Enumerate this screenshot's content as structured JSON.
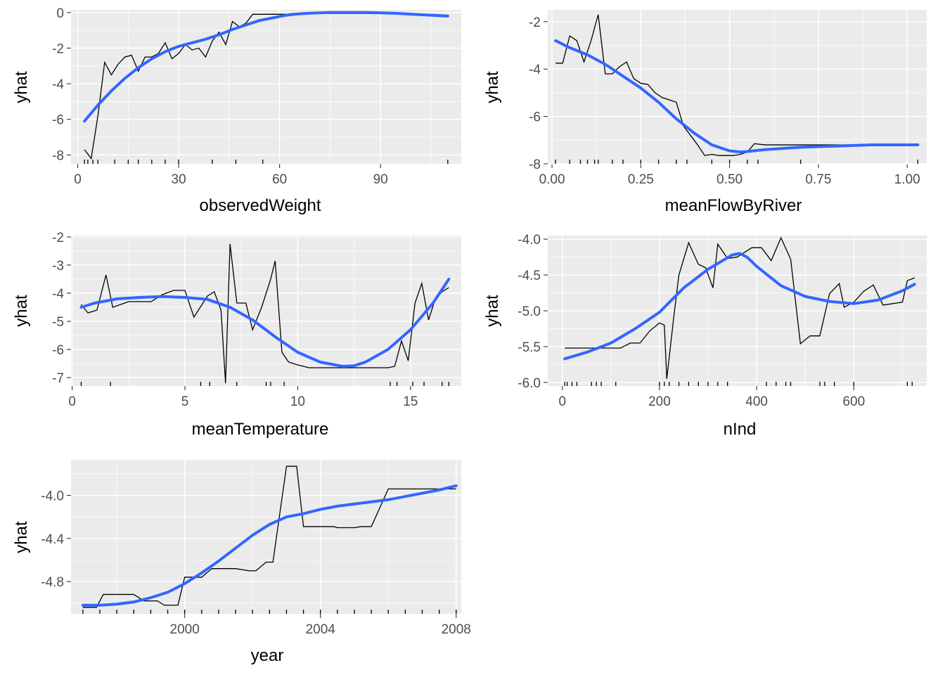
{
  "chart_data": [
    {
      "type": "line",
      "xlabel": "observedWeight",
      "ylabel": "yhat",
      "xlim": [
        -2,
        114
      ],
      "ylim": [
        -8.5,
        0.15
      ],
      "xticks": [
        0,
        30,
        60,
        90
      ],
      "xtick_labels": [
        "0",
        "30",
        "60",
        "90"
      ],
      "yticks": [
        -8,
        -6,
        -4,
        -2,
        0
      ],
      "ytick_labels": [
        "-8",
        "-6",
        "-4",
        "-2",
        "0"
      ],
      "grid": true,
      "rug": [
        2,
        3,
        4.5,
        6,
        11,
        15,
        18,
        22,
        26,
        30,
        40,
        47,
        55,
        110
      ],
      "series": [
        {
          "x": [
            2,
            4,
            6,
            8,
            10,
            12,
            14,
            16,
            18,
            20,
            22,
            24,
            26,
            28,
            30,
            32,
            34,
            36,
            38,
            40,
            42,
            44,
            46,
            48,
            50,
            52,
            54,
            56,
            58,
            60,
            62,
            64,
            66,
            68,
            70,
            75,
            80,
            85,
            90,
            95,
            100,
            105,
            110
          ],
          "values": [
            -7.7,
            -8.2,
            -5.8,
            -2.8,
            -3.5,
            -2.9,
            -2.5,
            -2.4,
            -3.3,
            -2.5,
            -2.5,
            -2.3,
            -1.7,
            -2.6,
            -2.3,
            -1.8,
            -2.1,
            -2.0,
            -2.5,
            -1.6,
            -1.1,
            -1.8,
            -0.5,
            -0.8,
            -0.6,
            -0.1,
            -0.1,
            -0.1,
            -0.1,
            -0.1,
            -0.1,
            -0.05,
            -0.05,
            -0.05,
            -0.05,
            -0.05,
            -0.05,
            -0.05,
            -0.05,
            -0.05,
            -0.1,
            -0.1,
            -0.15
          ]
        },
        {
          "x": [
            2,
            6,
            10,
            14,
            18,
            22,
            26,
            30,
            34,
            38,
            42,
            46,
            50,
            54,
            58,
            62,
            66,
            70,
            75,
            80,
            85,
            90,
            95,
            100,
            105,
            110
          ],
          "values": [
            -6.1,
            -5.2,
            -4.4,
            -3.7,
            -3.1,
            -2.6,
            -2.2,
            -1.9,
            -1.7,
            -1.5,
            -1.25,
            -0.95,
            -0.7,
            -0.45,
            -0.3,
            -0.15,
            -0.07,
            -0.03,
            0.0,
            0.0,
            0.0,
            -0.02,
            -0.05,
            -0.1,
            -0.15,
            -0.2
          ]
        }
      ]
    },
    {
      "type": "line",
      "xlabel": "meanFlowByRiver",
      "ylabel": "yhat",
      "xlim": [
        -0.012,
        1.055
      ],
      "ylim": [
        -8.0,
        -1.5
      ],
      "xticks": [
        0.0,
        0.25,
        0.5,
        0.75,
        1.0
      ],
      "xtick_labels": [
        "0.00",
        "0.25",
        "0.50",
        "0.75",
        "1.00"
      ],
      "yticks": [
        -8,
        -6,
        -4,
        -2
      ],
      "ytick_labels": [
        "-8",
        "-6",
        "-4",
        "-2"
      ],
      "grid": true,
      "rug": [
        0.01,
        0.05,
        0.08,
        0.1,
        0.12,
        0.13,
        0.17,
        0.2,
        0.25,
        0.3,
        0.35,
        0.38,
        0.45,
        0.5,
        0.55,
        0.58,
        0.7,
        1.03
      ],
      "series": [
        {
          "x": [
            0.01,
            0.03,
            0.05,
            0.07,
            0.09,
            0.11,
            0.13,
            0.15,
            0.17,
            0.19,
            0.21,
            0.23,
            0.25,
            0.27,
            0.29,
            0.31,
            0.33,
            0.35,
            0.37,
            0.39,
            0.41,
            0.43,
            0.45,
            0.47,
            0.49,
            0.51,
            0.53,
            0.55,
            0.57,
            0.6,
            0.7,
            0.8,
            0.9,
            1.03
          ],
          "values": [
            -3.75,
            -3.75,
            -2.6,
            -2.8,
            -3.7,
            -2.8,
            -1.7,
            -4.2,
            -4.2,
            -3.9,
            -3.7,
            -4.4,
            -4.6,
            -4.65,
            -5.0,
            -5.2,
            -5.3,
            -5.4,
            -6.4,
            -6.8,
            -7.2,
            -7.65,
            -7.6,
            -7.65,
            -7.65,
            -7.65,
            -7.6,
            -7.5,
            -7.15,
            -7.2,
            -7.2,
            -7.2,
            -7.2,
            -7.2
          ]
        },
        {
          "x": [
            0.01,
            0.05,
            0.1,
            0.15,
            0.2,
            0.25,
            0.3,
            0.35,
            0.4,
            0.45,
            0.5,
            0.53,
            0.55,
            0.6,
            0.7,
            0.8,
            0.9,
            1.03
          ],
          "values": [
            -2.8,
            -3.1,
            -3.4,
            -3.8,
            -4.3,
            -4.8,
            -5.4,
            -6.1,
            -6.7,
            -7.2,
            -7.45,
            -7.5,
            -7.48,
            -7.4,
            -7.3,
            -7.25,
            -7.2,
            -7.2
          ]
        }
      ]
    },
    {
      "type": "line",
      "xlabel": "meanTemperature",
      "ylabel": "yhat",
      "xlim": [
        -0.05,
        17.25
      ],
      "ylim": [
        -7.3,
        -1.95
      ],
      "xticks": [
        0,
        5,
        10,
        15
      ],
      "xtick_labels": [
        "0",
        "5",
        "10",
        "15"
      ],
      "yticks": [
        -7,
        -6,
        -5,
        -4,
        -3,
        -2
      ],
      "ytick_labels": [
        "-7",
        "-6",
        "-5",
        "-4",
        "-3",
        "-2"
      ],
      "grid": true,
      "rug": [
        0.4,
        1.7,
        5.7,
        6.1,
        7.3,
        8.6,
        8.8,
        9.4,
        14.1,
        14.4,
        15.1,
        15.6,
        16.4,
        16.7
      ],
      "series": [
        {
          "x": [
            0.4,
            0.7,
            1.1,
            1.5,
            1.8,
            2.5,
            3.5,
            4.0,
            4.5,
            5.0,
            5.4,
            6.0,
            6.3,
            6.6,
            6.8,
            7.0,
            7.3,
            7.7,
            8.0,
            8.4,
            8.8,
            9.0,
            9.3,
            9.6,
            10.0,
            10.5,
            11.0,
            12.0,
            13.0,
            14.0,
            14.3,
            14.6,
            14.9,
            15.2,
            15.5,
            15.8,
            16.1,
            16.4,
            16.7
          ],
          "values": [
            -4.4,
            -4.7,
            -4.6,
            -3.35,
            -4.5,
            -4.3,
            -4.3,
            -4.05,
            -3.9,
            -3.9,
            -4.85,
            -4.1,
            -3.95,
            -4.6,
            -7.2,
            -2.25,
            -4.35,
            -4.35,
            -5.3,
            -4.5,
            -3.5,
            -2.85,
            -6.1,
            -6.45,
            -6.55,
            -6.65,
            -6.65,
            -6.65,
            -6.65,
            -6.65,
            -6.6,
            -5.7,
            -6.4,
            -4.35,
            -3.65,
            -4.95,
            -4.2,
            -3.95,
            -3.8
          ]
        },
        {
          "x": [
            0.4,
            1,
            2,
            3,
            4,
            5,
            6,
            7,
            8,
            9,
            10,
            11,
            12,
            12.5,
            13,
            14,
            15,
            16,
            16.7
          ],
          "values": [
            -4.5,
            -4.35,
            -4.2,
            -4.15,
            -4.12,
            -4.15,
            -4.22,
            -4.5,
            -4.95,
            -5.55,
            -6.1,
            -6.45,
            -6.6,
            -6.58,
            -6.45,
            -6.0,
            -5.3,
            -4.35,
            -3.5
          ]
        }
      ]
    },
    {
      "type": "line",
      "xlabel": "nInd",
      "ylabel": "yhat",
      "xlim": [
        -30,
        750
      ],
      "ylim": [
        -6.05,
        -3.95
      ],
      "xticks": [
        0,
        200,
        400,
        600
      ],
      "xtick_labels": [
        "0",
        "200",
        "400",
        "600"
      ],
      "yticks": [
        -6.0,
        -5.5,
        -5.0,
        -4.5,
        -4.0
      ],
      "ytick_labels": [
        "-6.0",
        "-5.5",
        "-5.0",
        "-4.5",
        "-4.0"
      ],
      "grid": true,
      "rug": [
        5,
        10,
        20,
        30,
        60,
        70,
        80,
        110,
        200,
        210,
        220,
        240,
        260,
        280,
        300,
        320,
        340,
        420,
        440,
        460,
        470,
        530,
        540,
        560,
        600,
        710,
        720
      ],
      "series": [
        {
          "x": [
            5,
            30,
            60,
            90,
            120,
            140,
            160,
            180,
            200,
            210,
            215,
            230,
            240,
            260,
            280,
            295,
            310,
            320,
            340,
            360,
            390,
            410,
            430,
            450,
            470,
            490,
            510,
            530,
            550,
            570,
            580,
            600,
            620,
            640,
            660,
            680,
            700,
            710,
            725
          ],
          "values": [
            -5.52,
            -5.52,
            -5.52,
            -5.52,
            -5.52,
            -5.45,
            -5.45,
            -5.28,
            -5.17,
            -5.2,
            -5.95,
            -5.05,
            -4.5,
            -4.05,
            -4.35,
            -4.4,
            -4.68,
            -4.07,
            -4.27,
            -4.25,
            -4.12,
            -4.12,
            -4.3,
            -3.98,
            -4.28,
            -5.46,
            -5.35,
            -5.35,
            -4.76,
            -4.62,
            -4.95,
            -4.88,
            -4.73,
            -4.64,
            -4.92,
            -4.9,
            -4.88,
            -4.58,
            -4.54
          ]
        },
        {
          "x": [
            5,
            50,
            100,
            150,
            200,
            250,
            300,
            350,
            365,
            380,
            400,
            450,
            500,
            550,
            600,
            650,
            700,
            725
          ],
          "values": [
            -5.67,
            -5.58,
            -5.45,
            -5.25,
            -5.02,
            -4.68,
            -4.42,
            -4.22,
            -4.2,
            -4.25,
            -4.38,
            -4.65,
            -4.8,
            -4.87,
            -4.9,
            -4.85,
            -4.72,
            -4.63
          ]
        }
      ]
    },
    {
      "type": "line",
      "xlabel": "year",
      "ylabel": "yhat",
      "xlim": [
        1996.65,
        2008.15
      ],
      "ylim": [
        -5.1,
        -3.67
      ],
      "xticks": [
        2000,
        2004,
        2008
      ],
      "xtick_labels": [
        "2000",
        "2004",
        "2008"
      ],
      "yticks": [
        -4.8,
        -4.4,
        -4.0
      ],
      "ytick_labels": [
        "-4.8",
        "-4.4",
        "-4.0"
      ],
      "grid": true,
      "rug": [
        1997.0,
        1997.5,
        1998.0,
        1998.5,
        1999.0,
        1999.5,
        2000.0,
        2000.5,
        2001.0,
        2001.5,
        2002.0,
        2002.5,
        2003.0,
        2003.5,
        2004.0,
        2004.5,
        2005.0,
        2005.5,
        2006.0,
        2006.5,
        2007.0,
        2007.5,
        2008.0
      ],
      "series": [
        {
          "x": [
            1997.0,
            1997.4,
            1997.6,
            1998.0,
            1998.5,
            1998.8,
            1999.2,
            1999.4,
            1999.8,
            2000.0,
            2000.4,
            2000.5,
            2000.8,
            2001.0,
            2001.5,
            2001.9,
            2002.1,
            2002.4,
            2002.6,
            2003.0,
            2003.3,
            2003.5,
            2004.0,
            2004.4,
            2004.5,
            2005.0,
            2005.2,
            2005.5,
            2006.0,
            2007.0,
            2008.0
          ],
          "values": [
            -5.04,
            -5.04,
            -4.92,
            -4.92,
            -4.92,
            -4.98,
            -4.98,
            -5.02,
            -5.02,
            -4.76,
            -4.76,
            -4.76,
            -4.68,
            -4.68,
            -4.68,
            -4.7,
            -4.7,
            -4.62,
            -4.62,
            -3.73,
            -3.73,
            -4.29,
            -4.29,
            -4.29,
            -4.3,
            -4.3,
            -4.29,
            -4.29,
            -3.94,
            -3.94,
            -3.94
          ]
        },
        {
          "x": [
            1997.0,
            1997.5,
            1998.0,
            1998.5,
            1999.0,
            1999.5,
            2000.0,
            2000.5,
            2001.0,
            2001.5,
            2002.0,
            2002.5,
            2003.0,
            2003.5,
            2004.0,
            2004.5,
            2005.0,
            2005.5,
            2006.0,
            2006.5,
            2007.0,
            2007.5,
            2008.0
          ],
          "values": [
            -5.02,
            -5.02,
            -5.01,
            -4.99,
            -4.95,
            -4.9,
            -4.82,
            -4.72,
            -4.61,
            -4.49,
            -4.37,
            -4.27,
            -4.2,
            -4.17,
            -4.13,
            -4.1,
            -4.08,
            -4.06,
            -4.04,
            -4.01,
            -3.98,
            -3.95,
            -3.91
          ]
        }
      ]
    }
  ]
}
